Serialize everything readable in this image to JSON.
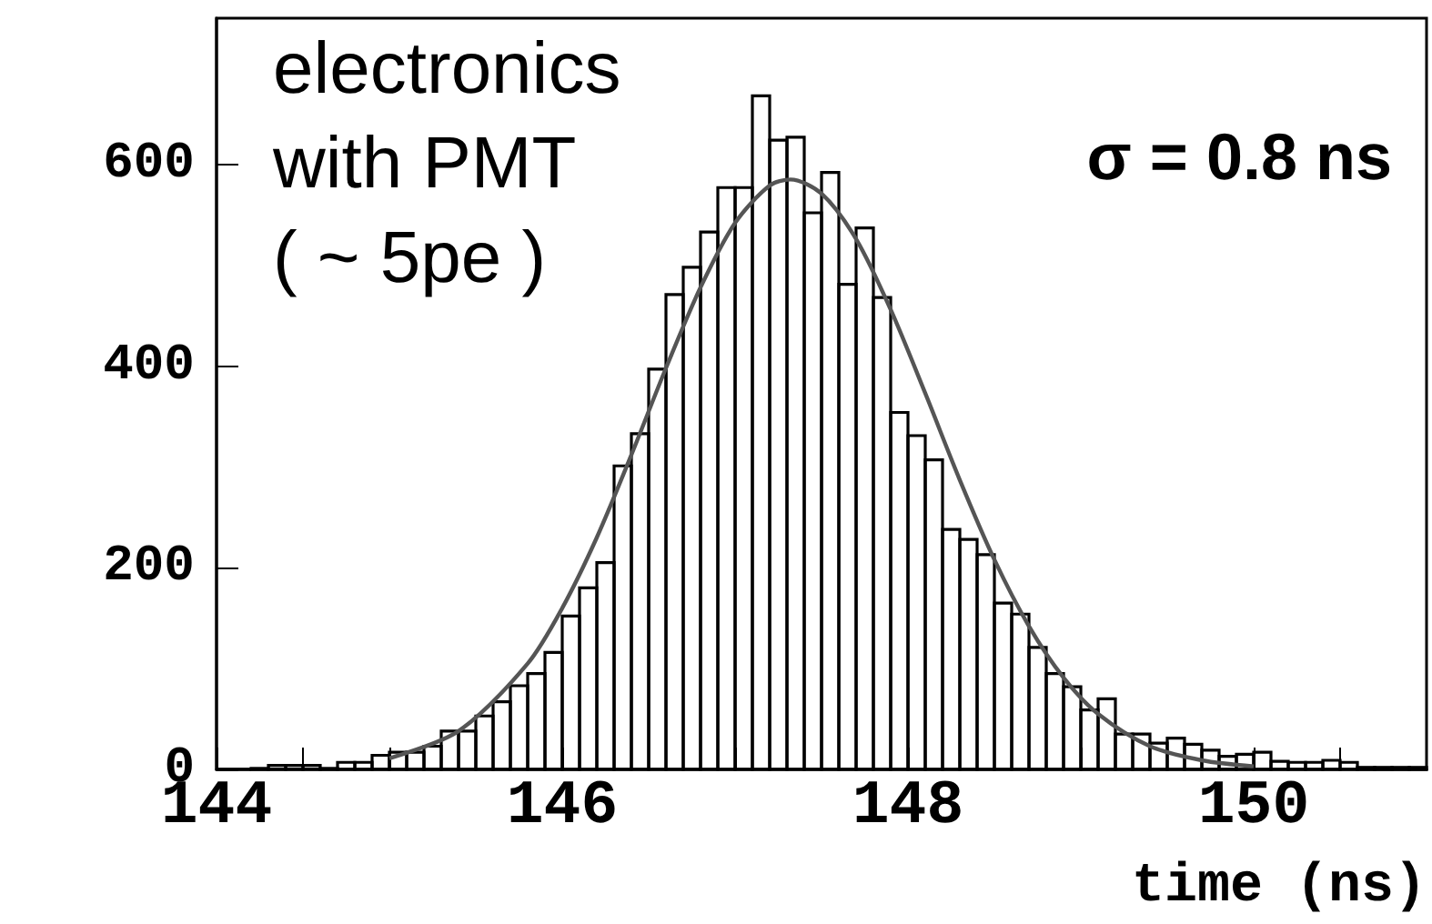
{
  "chart_data": {
    "type": "histogram",
    "xlabel": "time (ns)",
    "annotations": [
      "electronics\nwith PMT\n( ~ 5pe )",
      "σ = 0.8 ns"
    ],
    "bins": [
      144.0,
      144.1,
      144.2,
      144.3,
      144.4,
      144.5,
      144.6,
      144.7,
      144.8,
      144.9,
      145.0,
      145.1,
      145.2,
      145.3,
      145.4,
      145.5,
      145.6,
      145.7,
      145.8,
      145.9,
      146.0,
      146.1,
      146.2,
      146.3,
      146.4,
      146.5,
      146.6,
      146.7,
      146.8,
      146.9,
      147.0,
      147.1,
      147.2,
      147.3,
      147.4,
      147.5,
      147.6,
      147.7,
      147.8,
      147.9,
      148.0,
      148.1,
      148.2,
      148.3,
      148.4,
      148.5,
      148.6,
      148.7,
      148.8,
      148.9,
      149.0,
      149.1,
      149.2,
      149.3,
      149.4,
      149.5,
      149.6,
      149.7,
      149.8,
      149.9,
      150.0,
      150.1,
      150.2,
      150.3,
      150.4,
      150.5,
      150.6,
      150.7,
      150.8,
      150.9,
      151.0
    ],
    "values": [
      0,
      0,
      1,
      4,
      4,
      4,
      1,
      7,
      7,
      14,
      17,
      17,
      23,
      38,
      38,
      53,
      67,
      83,
      95,
      116,
      152,
      180,
      205,
      301,
      333,
      397,
      471,
      498,
      533,
      577,
      577,
      668,
      624,
      627,
      552,
      592,
      481,
      537,
      468,
      354,
      331,
      307,
      238,
      228,
      213,
      165,
      154,
      121,
      95,
      82,
      59,
      70,
      35,
      35,
      26,
      31,
      25,
      19,
      13,
      15,
      17,
      8,
      7,
      7,
      9,
      7,
      2,
      2,
      2,
      2
    ],
    "color": "#000000",
    "series": [
      {
        "type": "line",
        "color": "#555555",
        "x": [
          145.0,
          145.4,
          145.8,
          146.0,
          146.2,
          146.4,
          146.6,
          146.8,
          147.0,
          147.2,
          147.32,
          147.5,
          147.7,
          147.9,
          148.1,
          148.3,
          148.5,
          148.7,
          148.9,
          149.1,
          149.4,
          149.7,
          150.0
        ],
        "values": [
          11,
          38,
          105,
          160,
          230,
          312,
          398,
          478,
          542,
          579,
          585,
          571,
          526,
          456,
          373,
          287,
          208,
          142,
          91,
          55,
          23,
          9,
          3
        ]
      }
    ],
    "xlim": [
      144,
      151
    ],
    "ylim": [
      0,
      745
    ],
    "xticks": [
      144,
      {
        "value": 144.5,
        "label": null
      },
      {
        "value": 145,
        "label": null
      },
      {
        "value": 145.5,
        "label": null
      },
      146,
      {
        "value": 146.5,
        "label": null
      },
      {
        "value": 147,
        "label": null
      },
      {
        "value": 147.5,
        "label": null
      },
      148,
      {
        "value": 148.5,
        "label": null
      },
      {
        "value": 149,
        "label": null
      },
      {
        "value": 149.5,
        "label": null
      },
      150,
      {
        "value": 150.5,
        "label": null
      }
    ],
    "yticks": [
      0,
      200,
      400,
      600
    ],
    "grid": false,
    "legend": false,
    "marker": "none",
    "line_style": "solid"
  }
}
